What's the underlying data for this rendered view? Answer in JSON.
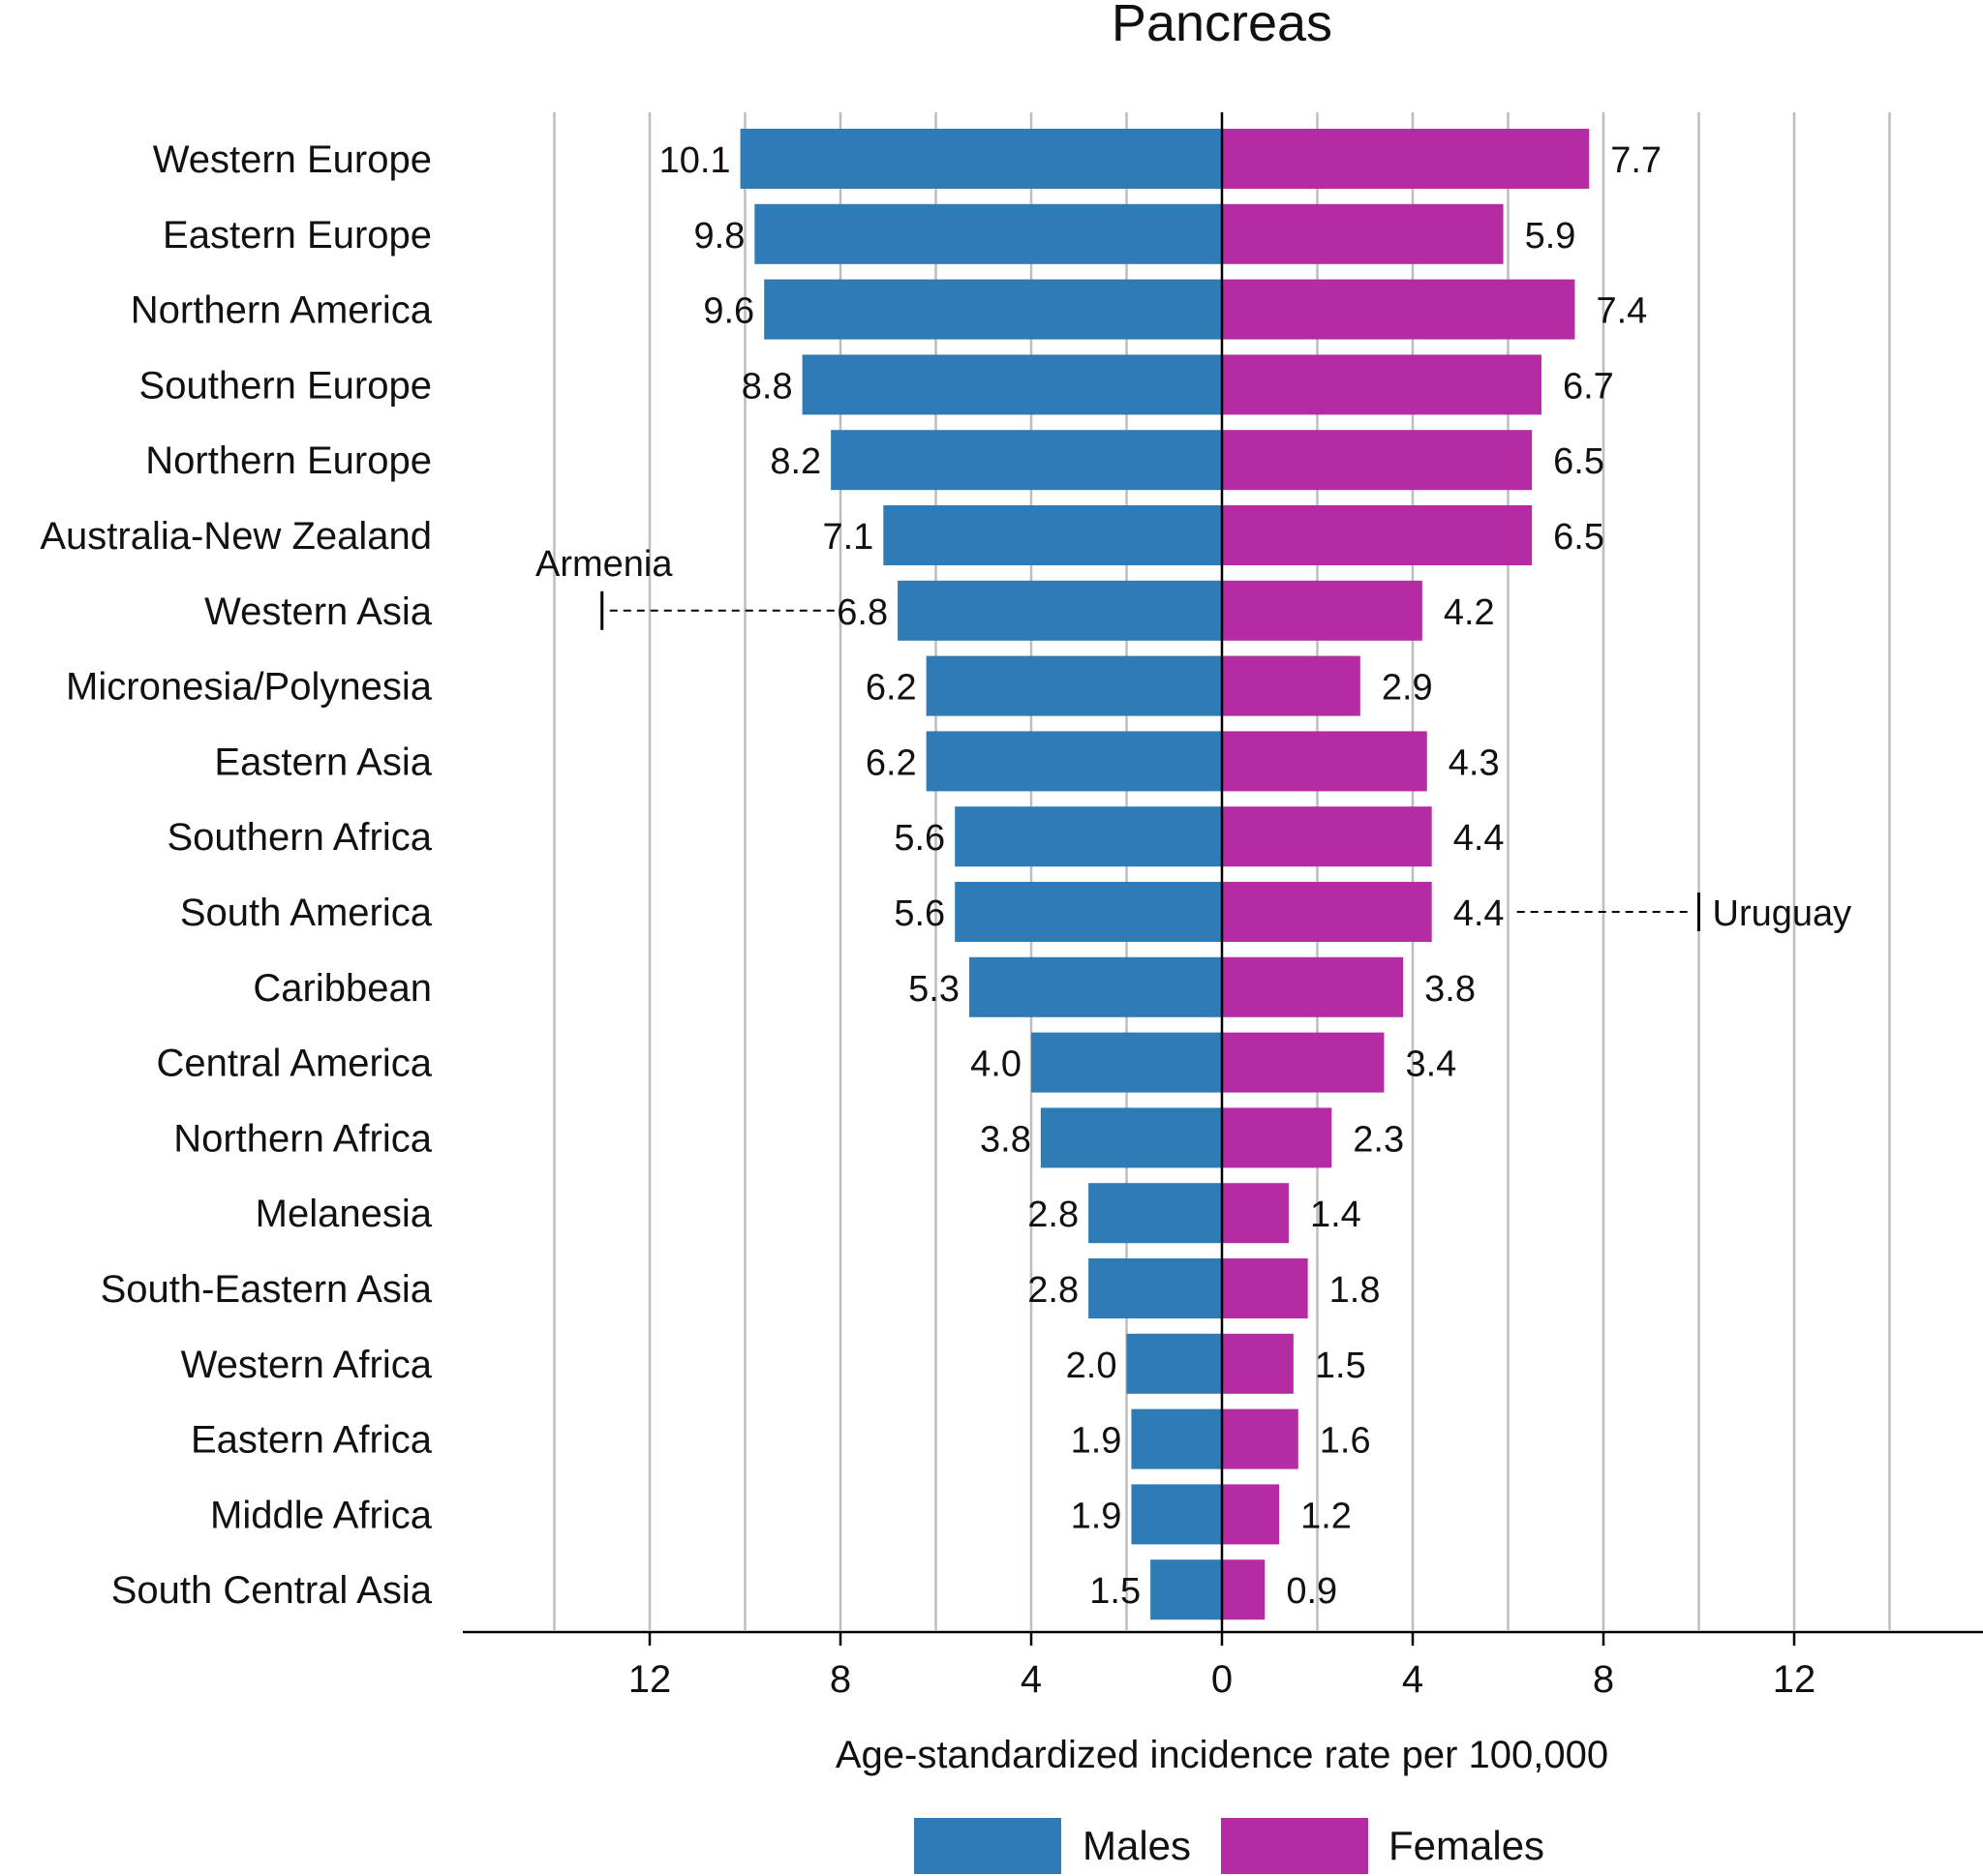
{
  "chart_data": {
    "type": "bar",
    "orientation": "horizontal-diverging",
    "title": "Pancreas",
    "xlabel": "Age-standardized incidence rate per 100,000",
    "ylabel": "",
    "xlim": [
      -14,
      14
    ],
    "xticks": [
      -12,
      -8,
      -4,
      0,
      4,
      8,
      12
    ],
    "xtick_labels": [
      "12",
      "8",
      "4",
      "0",
      "4",
      "8",
      "12"
    ],
    "grid_lines": [
      -14,
      -12,
      -10,
      -8,
      -6,
      -4,
      -2,
      2,
      4,
      6,
      8,
      10,
      12,
      14
    ],
    "grid": true,
    "legend_position": "bottom",
    "categories": [
      "Western Europe",
      "Eastern Europe",
      "Northern America",
      "Southern Europe",
      "Northern Europe",
      "Australia-New Zealand",
      "Western Asia",
      "Micronesia/Polynesia",
      "Eastern Asia",
      "Southern Africa",
      "South America",
      "Caribbean",
      "Central America",
      "Northern Africa",
      "Melanesia",
      "South-Eastern Asia",
      "Western Africa",
      "Eastern Africa",
      "Middle Africa",
      "South Central Asia"
    ],
    "series": [
      {
        "name": "Males",
        "color": "#2e7bb6",
        "values": [
          10.1,
          9.8,
          9.6,
          8.8,
          8.2,
          7.1,
          6.8,
          6.2,
          6.2,
          5.6,
          5.6,
          5.3,
          4.0,
          3.8,
          2.8,
          2.8,
          2.0,
          1.9,
          1.9,
          1.5
        ],
        "labels": [
          "10.1",
          "9.8",
          "9.6",
          "8.8",
          "8.2",
          "7.1",
          "6.8",
          "6.2",
          "6.2",
          "5.6",
          "5.6",
          "5.3",
          "4.0",
          "3.8",
          "2.8",
          "2.8",
          "2.0",
          "1.9",
          "1.9",
          "1.5"
        ]
      },
      {
        "name": "Females",
        "color": "#b42ba3",
        "values": [
          7.7,
          5.9,
          7.4,
          6.7,
          6.5,
          6.5,
          4.2,
          2.9,
          4.3,
          4.4,
          4.4,
          3.8,
          3.4,
          2.3,
          1.4,
          1.8,
          1.5,
          1.6,
          1.2,
          0.9
        ],
        "labels": [
          "7.7",
          "5.9",
          "7.4",
          "6.7",
          "6.5",
          "6.5",
          "4.2",
          "2.9",
          "4.3",
          "4.4",
          "4.4",
          "3.8",
          "3.4",
          "2.3",
          "1.4",
          "1.8",
          "1.5",
          "1.6",
          "1.2",
          "0.9"
        ]
      }
    ],
    "annotations": [
      {
        "label": "Armenia",
        "category": "Western Asia",
        "series": "Males",
        "value": 13.0
      },
      {
        "label": "Uruguay",
        "category": "South America",
        "series": "Females",
        "value": 10.0
      }
    ]
  }
}
